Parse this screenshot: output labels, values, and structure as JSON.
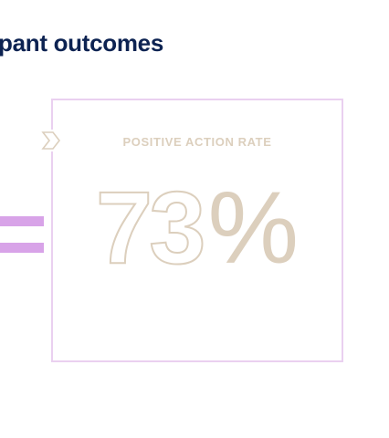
{
  "section": {
    "heading": "pant outcomes"
  },
  "stat_card": {
    "label": "POSITIVE ACTION RATE",
    "value": "73",
    "unit": "%",
    "marker_icon": "chevron-right-icon"
  },
  "colors": {
    "heading": "#0d2352",
    "accent": "#d8a3e8",
    "card_border": "#ead0f0",
    "stat_text": "#dccfbd"
  }
}
